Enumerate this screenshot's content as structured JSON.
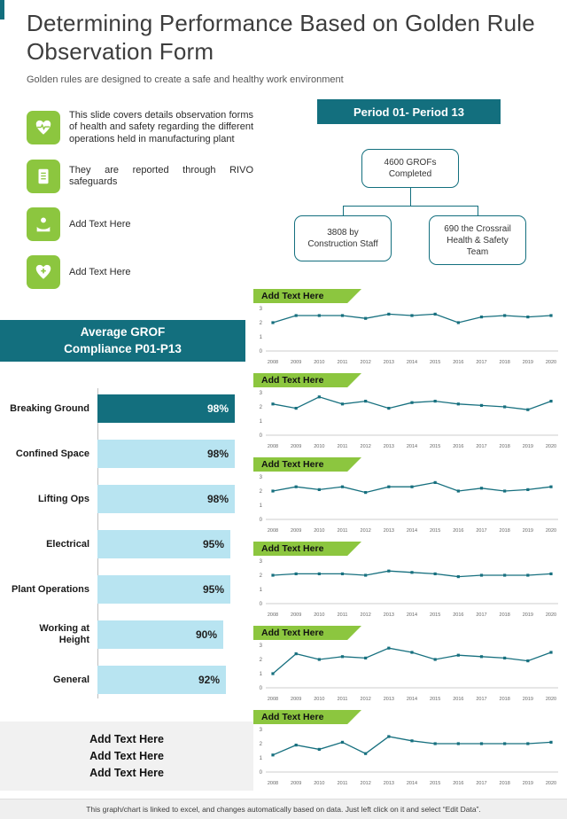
{
  "colors": {
    "teal": "#136f7e",
    "green": "#8cc63f",
    "light_blue": "#b8e4f1",
    "title_gray": "#3d3d3d"
  },
  "header": {
    "title": "Determining Performance Based on Golden Rule Observation Form",
    "subtitle": "Golden rules are designed to create a safe and healthy work environment"
  },
  "info_items": [
    {
      "icon": "health-heart-icon",
      "text": "This slide covers details observation forms of health and safety regarding the different operations held in manufacturing plant"
    },
    {
      "icon": "report-icon",
      "text": "They are reported through RIVO safeguards"
    },
    {
      "icon": "care-hand-icon",
      "text": "Add Text Here"
    },
    {
      "icon": "heart-plus-icon",
      "text": "Add Text Here"
    }
  ],
  "right_panel": {
    "banner": "Period 01- Period 13",
    "org_chart": {
      "root": "4600 GROFs Completed",
      "children": [
        "3808 by Construction Staff",
        "690 the Crossrail Health & Safety Team"
      ]
    }
  },
  "left_panel": {
    "banner": "Average GROF Compliance P01-P13",
    "placeholders": [
      "Add Text Here",
      "Add Text Here",
      "Add Text Here"
    ]
  },
  "footer": {
    "note": "This graph/chart is linked to excel, and changes automatically based on data. Just left click on it and select “Edit Data”."
  },
  "chart_data": [
    {
      "type": "bar",
      "orientation": "horizontal",
      "title": "Average GROF Compliance P01-P13",
      "categories": [
        "Breaking Ground",
        "Confined Space",
        "Lifting Ops",
        "Electrical",
        "Plant Operations",
        "Working at Height",
        "General"
      ],
      "values": [
        98,
        98,
        98,
        95,
        95,
        90,
        92
      ],
      "value_suffix": "%",
      "xlim": [
        0,
        100
      ],
      "highlight_first": true
    },
    {
      "type": "line",
      "label": "Add Text Here",
      "x": [
        2008,
        2009,
        2010,
        2011,
        2012,
        2013,
        2014,
        2015,
        2016,
        2017,
        2018,
        2019,
        2020
      ],
      "values": [
        2.0,
        2.5,
        2.5,
        2.5,
        2.3,
        2.6,
        2.5,
        2.6,
        2.0,
        2.4,
        2.5,
        2.4,
        2.5
      ],
      "ylim": [
        0,
        3
      ]
    },
    {
      "type": "line",
      "label": "Add Text Here",
      "x": [
        2008,
        2009,
        2010,
        2011,
        2012,
        2013,
        2014,
        2015,
        2016,
        2017,
        2018,
        2019,
        2020
      ],
      "values": [
        2.2,
        1.9,
        2.7,
        2.2,
        2.4,
        1.9,
        2.3,
        2.4,
        2.2,
        2.1,
        2.0,
        1.8,
        2.4
      ],
      "ylim": [
        0,
        3
      ]
    },
    {
      "type": "line",
      "label": "Add Text Here",
      "x": [
        2008,
        2009,
        2010,
        2011,
        2012,
        2013,
        2014,
        2015,
        2016,
        2017,
        2018,
        2019,
        2020
      ],
      "values": [
        2.0,
        2.3,
        2.1,
        2.3,
        1.9,
        2.3,
        2.3,
        2.6,
        2.0,
        2.2,
        2.0,
        2.1,
        2.3
      ],
      "ylim": [
        0,
        3
      ]
    },
    {
      "type": "line",
      "label": "Add Text Here",
      "x": [
        2008,
        2009,
        2010,
        2011,
        2012,
        2013,
        2014,
        2015,
        2016,
        2017,
        2018,
        2019,
        2020
      ],
      "values": [
        2.0,
        2.1,
        2.1,
        2.1,
        2.0,
        2.3,
        2.2,
        2.1,
        1.9,
        2.0,
        2.0,
        2.0,
        2.1
      ],
      "ylim": [
        0,
        3
      ]
    },
    {
      "type": "line",
      "label": "Add Text Here",
      "x": [
        2008,
        2009,
        2010,
        2011,
        2012,
        2013,
        2014,
        2015,
        2016,
        2017,
        2018,
        2019,
        2020
      ],
      "values": [
        1.0,
        2.4,
        2.0,
        2.2,
        2.1,
        2.8,
        2.5,
        2.0,
        2.3,
        2.2,
        2.1,
        1.9,
        2.5
      ],
      "ylim": [
        0,
        3
      ]
    },
    {
      "type": "line",
      "label": "Add Text Here",
      "x": [
        2008,
        2009,
        2010,
        2011,
        2012,
        2013,
        2014,
        2015,
        2016,
        2017,
        2018,
        2019,
        2020
      ],
      "values": [
        1.2,
        1.9,
        1.6,
        2.1,
        1.3,
        2.5,
        2.2,
        2.0,
        2.0,
        2.0,
        2.0,
        2.0,
        2.1
      ],
      "ylim": [
        0,
        3
      ]
    }
  ]
}
